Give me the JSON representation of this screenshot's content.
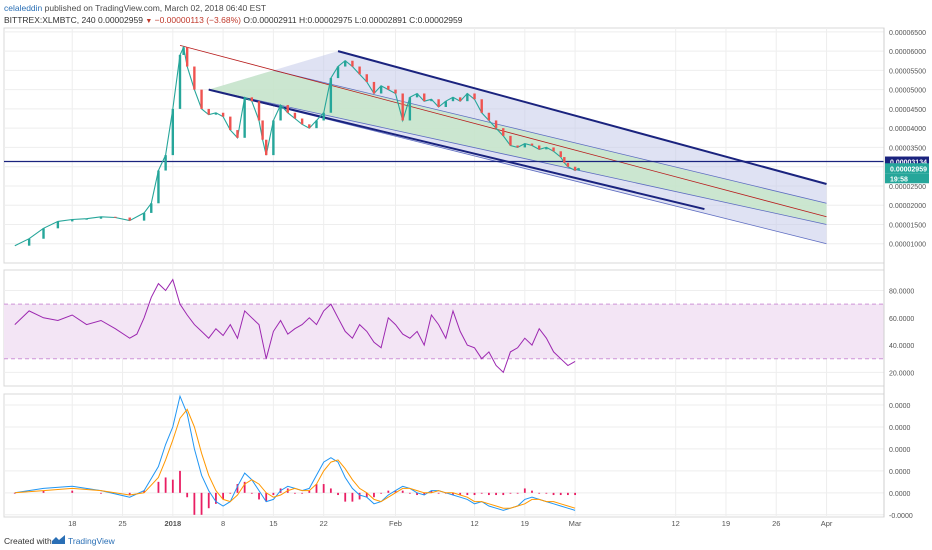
{
  "header": {
    "author": "celaleddin",
    "published": "published on TradingView.com, March 02, 2018 06:40 EST",
    "symbol": "BITTREX:XLMBTC, 240",
    "last": "0.00002959",
    "change": "−0.00000113 (−3.68%)",
    "ohlc": "O:0.00002911 H:0.00002975 L:0.00002891 C:0.00002959"
  },
  "footer": {
    "created": "Created with",
    "brand": "TradingView"
  },
  "colors": {
    "up": "#26a69a",
    "down": "#ef5350",
    "channel_line": "#1a237e",
    "channel_fill": "#c5cae9",
    "channel_mid": "#c8e6c9",
    "rsi": "#9c27b0",
    "rsi_band": "#f3e5f5",
    "macd": "#2196f3",
    "signal": "#ff9800",
    "hist": "#e91e63",
    "level": "#1a237e",
    "price_tag": "#1a237e",
    "last_tag": "#26a69a"
  },
  "chart_data": [
    {
      "type": "line",
      "title": "BITTREX:XLMBTC, 240",
      "ylim": [
        5e-06,
        6.6e-05
      ],
      "y_ticks": [
        "0.00006500",
        "0.00006000",
        "0.00005500",
        "0.00005000",
        "0.00004500",
        "0.00004000",
        "0.00003500",
        "0.00003000",
        "0.00002500",
        "0.00002000",
        "0.00001500",
        "0.00001000"
      ],
      "y_tick_values": [
        6.5e-05,
        6e-05,
        5.5e-05,
        5e-05,
        4.5e-05,
        4e-05,
        3.5e-05,
        3e-05,
        2.5e-05,
        2e-05,
        1.5e-05,
        1e-05
      ],
      "x_ticks": [
        "18",
        "25",
        "2018",
        "8",
        "15",
        "22",
        "Feb",
        "12",
        "19",
        "Mar",
        "12",
        "19",
        "26",
        "Apr"
      ],
      "x_tick_days": [
        18,
        25,
        32,
        39,
        46,
        53,
        63,
        74,
        81,
        88,
        102,
        109,
        116,
        123
      ],
      "close": {
        "days": [
          10,
          12,
          14,
          16,
          18,
          20,
          22,
          24,
          26,
          28,
          29,
          30,
          31,
          32,
          33,
          33.5,
          34,
          35,
          36,
          37,
          38,
          39,
          40,
          41,
          42,
          43,
          44,
          44.5,
          45,
          46,
          47,
          48,
          49,
          50,
          51,
          52,
          53,
          54,
          55,
          56,
          57,
          58,
          59,
          60,
          61,
          62,
          63,
          64,
          65,
          66,
          67,
          68,
          69,
          70,
          71,
          72,
          73,
          74,
          75,
          76,
          77,
          78,
          79,
          80,
          81,
          82,
          83,
          84,
          85,
          86,
          86.5,
          87,
          88,
          88.5
        ],
        "values": [
          9.5e-06,
          1.13e-05,
          1.4e-05,
          1.58e-05,
          1.63e-05,
          1.65e-05,
          1.7e-05,
          1.68e-05,
          1.6e-05,
          1.8e-05,
          2.05e-05,
          2.9e-05,
          3.3e-05,
          4.5e-05,
          5.9e-05,
          6.1e-05,
          5.6e-05,
          5e-05,
          4.5e-05,
          4.35e-05,
          4.4e-05,
          4.3e-05,
          3.95e-05,
          3.75e-05,
          4.8e-05,
          4.7e-05,
          4.2e-05,
          3.7e-05,
          3.3e-05,
          4.2e-05,
          4.6e-05,
          4.4e-05,
          4.25e-05,
          4.1e-05,
          4e-05,
          4.2e-05,
          4.4e-05,
          5.3e-05,
          5.6e-05,
          5.75e-05,
          5.6e-05,
          5.4e-05,
          5.2e-05,
          4.9e-05,
          5.1e-05,
          5e-05,
          4.9e-05,
          4.2e-05,
          4.8e-05,
          4.9e-05,
          4.7e-05,
          4.75e-05,
          4.55e-05,
          4.7e-05,
          4.8e-05,
          4.7e-05,
          4.9e-05,
          4.75e-05,
          4.4e-05,
          4.2e-05,
          4e-05,
          3.8e-05,
          3.55e-05,
          3.5e-05,
          3.6e-05,
          3.55e-05,
          3.45e-05,
          3.5e-05,
          3.4e-05,
          3.25e-05,
          3.1e-05,
          3e-05,
          2.9e-05,
          2.96e-05
        ]
      },
      "horizontal_level": 3.134e-05,
      "price_tags": [
        "0.00003134",
        "0.00002959",
        "19:58"
      ],
      "trend_line": {
        "from": [
          33,
          6.15e-05
        ],
        "to": [
          123,
          1.7e-05
        ]
      },
      "channel": {
        "upper": {
          "from": [
            55,
            6e-05
          ],
          "to": [
            123,
            2.55e-05
          ]
        },
        "mid_upper": {
          "from": [
            46,
            5.5e-05
          ],
          "to": [
            123,
            2.05e-05
          ]
        },
        "mid_lower": {
          "from": [
            37,
            5e-05
          ],
          "to": [
            123,
            1.5e-05
          ]
        },
        "lower": {
          "from": [
            37,
            5e-05
          ],
          "to": [
            123,
            1e-05
          ]
        },
        "lower_bold": {
          "from": [
            37,
            5e-05
          ],
          "to": [
            106,
            1.9e-05
          ]
        }
      }
    },
    {
      "type": "line",
      "title": "",
      "ylim": [
        10,
        95
      ],
      "y_ticks": [
        "80.0000",
        "60.0000",
        "40.0000",
        "20.0000"
      ],
      "y_tick_values": [
        80,
        60,
        40,
        20
      ],
      "band": [
        30,
        70
      ],
      "series": [
        {
          "days": [
            10,
            12,
            14,
            16,
            18,
            20,
            22,
            24,
            26,
            27,
            28,
            29,
            30,
            31,
            32,
            33,
            34,
            35,
            36,
            37,
            38,
            39,
            40,
            41,
            42,
            43,
            44,
            45,
            46,
            47,
            48,
            49,
            50,
            51,
            52,
            53,
            54,
            55,
            56,
            57,
            58,
            59,
            60,
            61,
            62,
            63,
            64,
            65,
            66,
            67,
            68,
            69,
            70,
            71,
            72,
            73,
            74,
            75,
            76,
            77,
            78,
            79,
            80,
            81,
            82,
            83,
            84,
            85,
            86,
            87,
            88
          ],
          "values": [
            55,
            65,
            60,
            58,
            62,
            55,
            58,
            52,
            45,
            48,
            60,
            75,
            85,
            80,
            88,
            70,
            62,
            55,
            50,
            45,
            52,
            47,
            55,
            45,
            65,
            60,
            55,
            30,
            50,
            58,
            48,
            52,
            55,
            60,
            55,
            65,
            70,
            60,
            50,
            45,
            55,
            50,
            42,
            38,
            60,
            55,
            48,
            45,
            50,
            40,
            62,
            55,
            45,
            65,
            50,
            40,
            38,
            30,
            35,
            25,
            20,
            35,
            38,
            45,
            40,
            52,
            45,
            35,
            30,
            25,
            28
          ]
        }
      ]
    },
    {
      "type": "line",
      "title": "",
      "ylim": [
        -1.1e-06,
        4.5e-06
      ],
      "y_ticks": [
        "0.0000",
        "0.0000",
        "0.0000",
        "0.0000",
        "0.0000",
        "-0.0000"
      ],
      "y_tick_values": [
        4e-06,
        3e-06,
        2e-06,
        1e-06,
        0,
        -1e-06
      ],
      "series": [
        {
          "days": [
            10,
            14,
            18,
            22,
            26,
            28,
            30,
            31,
            32,
            33,
            34,
            35,
            36,
            37,
            38,
            39,
            40,
            41,
            42,
            43,
            44,
            45,
            46,
            47,
            48,
            49,
            50,
            51,
            52,
            53,
            54,
            55,
            56,
            57,
            58,
            59,
            60,
            61,
            62,
            63,
            64,
            65,
            66,
            67,
            68,
            69,
            70,
            71,
            72,
            73,
            74,
            75,
            76,
            77,
            78,
            79,
            80,
            81,
            82,
            83,
            84,
            85,
            86,
            87,
            88
          ],
          "values": [
            0,
            2e-07,
            3e-07,
            1e-07,
            -2e-07,
            1e-07,
            1.2e-06,
            2.2e-06,
            3e-06,
            4.4e-06,
            3.6e-06,
            2e-06,
            8e-07,
            1e-07,
            -4e-07,
            -6e-07,
            -4e-07,
            3e-07,
            9e-07,
            6e-07,
            1e-07,
            -4e-07,
            -3e-07,
            1e-07,
            3e-07,
            2e-07,
            1e-07,
            2e-07,
            8e-07,
            1.4e-06,
            1.6e-06,
            1.4e-06,
            7e-07,
            2e-07,
            -1e-07,
            -2e-07,
            -5e-07,
            -4e-07,
            -1e-07,
            1e-07,
            3e-07,
            2e-07,
            0,
            -1e-07,
            1e-07,
            1e-07,
            0,
            -1e-07,
            -2e-07,
            -3e-07,
            -5e-07,
            -4e-07,
            -6e-07,
            -7e-07,
            -8e-07,
            -7e-07,
            -6e-07,
            -3e-07,
            -2e-07,
            -3e-07,
            -4e-07,
            -5e-07,
            -6e-07,
            -7e-07,
            -8e-07
          ]
        },
        {
          "days": [
            10,
            14,
            18,
            22,
            26,
            28,
            30,
            31,
            32,
            33,
            34,
            35,
            36,
            37,
            38,
            39,
            40,
            41,
            42,
            43,
            44,
            45,
            46,
            47,
            48,
            49,
            50,
            51,
            52,
            53,
            54,
            55,
            56,
            57,
            58,
            59,
            60,
            61,
            62,
            63,
            64,
            65,
            66,
            67,
            68,
            69,
            70,
            71,
            72,
            73,
            74,
            75,
            76,
            77,
            78,
            79,
            80,
            81,
            82,
            83,
            84,
            85,
            86,
            87,
            88
          ],
          "values": [
            0,
            1e-07,
            2e-07,
            1e-07,
            -1e-07,
            0,
            7e-07,
            1.5e-06,
            2.4e-06,
            3.4e-06,
            3.8e-06,
            3e-06,
            1.8e-06,
            8e-07,
            1e-07,
            -3e-07,
            -4e-07,
            -1e-07,
            4e-07,
            6e-07,
            4e-07,
            0,
            -2e-07,
            -1e-07,
            1e-07,
            2e-07,
            1e-07,
            1e-07,
            4e-07,
            1e-06,
            1.4e-06,
            1.5e-06,
            1.1e-06,
            6e-07,
            2e-07,
            0,
            -3e-07,
            -4e-07,
            -2e-07,
            0,
            2e-07,
            2e-07,
            1e-07,
            0,
            0,
            1e-07,
            0,
            0,
            -1e-07,
            -2e-07,
            -4e-07,
            -4e-07,
            -5e-07,
            -6e-07,
            -7e-07,
            -7e-07,
            -6e-07,
            -5e-07,
            -3e-07,
            -3e-07,
            -4e-07,
            -4e-07,
            -5e-07,
            -6e-07,
            -7e-07
          ]
        }
      ]
    }
  ]
}
